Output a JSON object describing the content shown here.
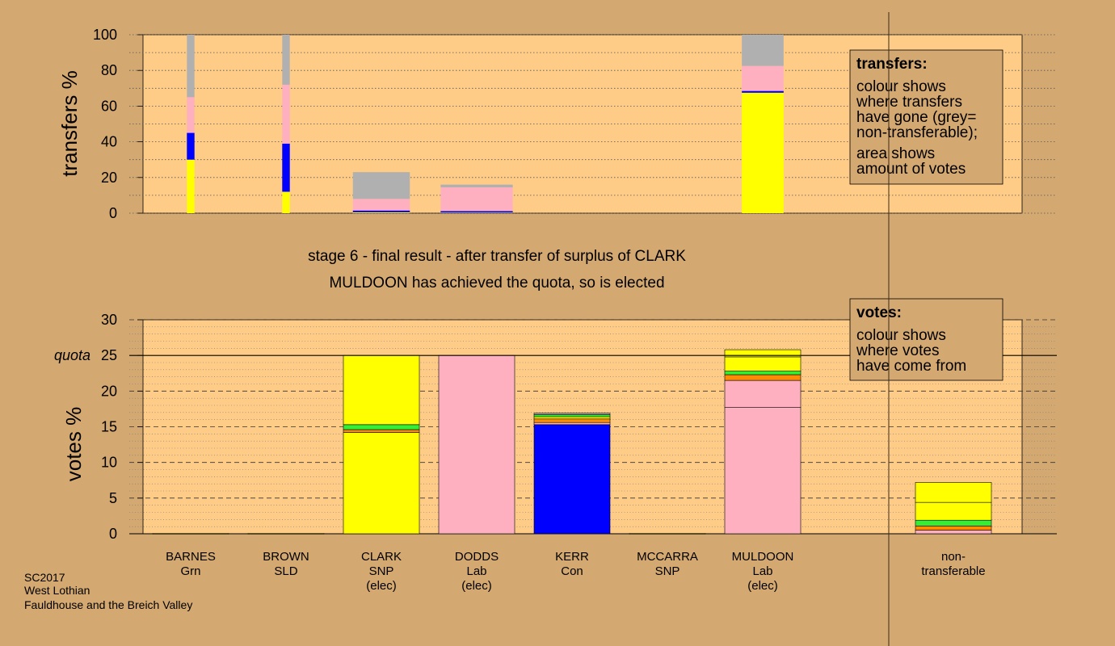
{
  "chart_data": [
    {
      "type": "bar",
      "stacked": true,
      "ylabel": "transfers %",
      "ylim": [
        0,
        100
      ],
      "yticks": [
        "0",
        "20",
        "40",
        "60",
        "80",
        "100"
      ],
      "grid": "dotted horizontal",
      "legend": {
        "title": "transfers:",
        "lines": [
          "colour shows",
          "where transfers",
          "have gone (grey=",
          "non-transferable);"
        ],
        "lines2": [
          "area shows",
          "amount of votes"
        ],
        "placement": "top-right"
      },
      "bars": [
        {
          "candidate": "BARNES",
          "width": 0.1,
          "segments": [
            {
              "color": "#ffff00",
              "value": 30
            },
            {
              "color": "#0000ff",
              "value": 15
            },
            {
              "color": "#ffb0c0",
              "value": 20
            },
            {
              "color": "#b0b0b0",
              "value": 35
            }
          ]
        },
        {
          "candidate": "BROWN",
          "width": 0.1,
          "segments": [
            {
              "color": "#ffff00",
              "value": 12
            },
            {
              "color": "#0000ff",
              "value": 27
            },
            {
              "color": "#ffb0c0",
              "value": 33
            },
            {
              "color": "#b0b0b0",
              "value": 28
            }
          ]
        },
        {
          "candidate": "CLARK",
          "width": 0.75,
          "segments": [
            {
              "color": "#ffff00",
              "value": 0.5
            },
            {
              "color": "#0000ff",
              "value": 1
            },
            {
              "color": "#ffb0c0",
              "value": 6.5
            },
            {
              "color": "#b0b0b0",
              "value": 15
            }
          ]
        },
        {
          "candidate": "DODDS",
          "width": 0.95,
          "segments": [
            {
              "color": "#ffff00",
              "value": 0.3
            },
            {
              "color": "#0000ff",
              "value": 0.9
            },
            {
              "color": "#ffb0c0",
              "value": 13.3
            },
            {
              "color": "#b0b0b0",
              "value": 1.5
            }
          ]
        },
        {
          "candidate": "KERR",
          "width": 0.95,
          "segments": []
        },
        {
          "candidate": "MCCARRA",
          "width": 0.95,
          "segments": []
        },
        {
          "candidate": "MULDOON",
          "width": 0.55,
          "segments": [
            {
              "color": "#ffff00",
              "value": 67.5
            },
            {
              "color": "#0000ff",
              "value": 1
            },
            {
              "color": "#ffb0c0",
              "value": 14
            },
            {
              "color": "#b0b0b0",
              "value": 17.5
            }
          ]
        }
      ]
    },
    {
      "type": "bar",
      "stacked": true,
      "ylabel": "votes %",
      "ylim": [
        0,
        30
      ],
      "yticks": [
        "0",
        "5",
        "10",
        "15",
        "20",
        "25",
        "30"
      ],
      "quota": 25,
      "quota_label": "quota",
      "grid": "dashed horizontal",
      "legend": {
        "title": "votes:",
        "lines": [
          "colour shows",
          "where votes",
          "have come from"
        ],
        "placement": "top-right"
      },
      "categories": [
        {
          "name": "BARNES",
          "party": "Grn",
          "note": ""
        },
        {
          "name": "BROWN",
          "party": "SLD",
          "note": ""
        },
        {
          "name": "CLARK",
          "party": "SNP",
          "note": "(elec)"
        },
        {
          "name": "DODDS",
          "party": "Lab",
          "note": "(elec)"
        },
        {
          "name": "KERR",
          "party": "Con",
          "note": ""
        },
        {
          "name": "MCCARRA",
          "party": "SNP",
          "note": ""
        },
        {
          "name": "MULDOON",
          "party": "Lab",
          "note": "(elec)"
        },
        {
          "name": "",
          "party": "",
          "note": ""
        },
        {
          "name": "non-",
          "party": "transferable",
          "note": ""
        }
      ],
      "bars": [
        {
          "index": 0,
          "segments": [
            {
              "color": "#ffff00",
              "value": 0.05
            }
          ]
        },
        {
          "index": 1,
          "segments": [
            {
              "color": "#ffff00",
              "value": 0.05
            }
          ]
        },
        {
          "index": 2,
          "segments": [
            {
              "color": "#ffff00",
              "value": 14.2
            },
            {
              "color": "#ff8c00",
              "value": 0.4
            },
            {
              "color": "#33ee33",
              "value": 0.7
            },
            {
              "color": "#ffff00",
              "value": 9.7
            }
          ]
        },
        {
          "index": 3,
          "segments": [
            {
              "color": "#ffb0c0",
              "value": 25
            }
          ]
        },
        {
          "index": 4,
          "segments": [
            {
              "color": "#0000ff",
              "value": 15.3
            },
            {
              "color": "#ffb0c0",
              "value": 0.3
            },
            {
              "color": "#ff8c00",
              "value": 0.5
            },
            {
              "color": "#ffff00",
              "value": 0.3
            },
            {
              "color": "#33ee33",
              "value": 0.3
            },
            {
              "color": "#b0b0b0",
              "value": 0.2
            }
          ]
        },
        {
          "index": 5,
          "segments": [
            {
              "color": "#ffff00",
              "value": 0.05
            }
          ]
        },
        {
          "index": 6,
          "segments": [
            {
              "color": "#ffb0c0",
              "value": 17.7
            },
            {
              "color": "#ffb0c0",
              "value": 3.8
            },
            {
              "color": "#ff8c00",
              "value": 0.8
            },
            {
              "color": "#33ee33",
              "value": 0.5
            },
            {
              "color": "#ffff00",
              "value": 2
            },
            {
              "color": "#ffff00",
              "value": 1
            }
          ]
        },
        {
          "index": 8,
          "segments": [
            {
              "color": "#ffb0c0",
              "value": 0.5
            },
            {
              "color": "#ff8c00",
              "value": 0.6
            },
            {
              "color": "#33ee33",
              "value": 0.8
            },
            {
              "color": "#ffff00",
              "value": 2.5
            },
            {
              "color": "#ffff00",
              "value": 2.8
            }
          ]
        }
      ]
    }
  ],
  "heading": {
    "line1": "stage 6 - final result - after transfer of surplus of CLARK",
    "line2": "MULDOON has achieved the quota, so is elected"
  },
  "footer": [
    "SC2017",
    "West Lothian",
    "Fauldhouse and the Breich Valley"
  ],
  "colors": {
    "background": "#d4a871",
    "plot": "#ffcc88",
    "legend_box": "#d4a871"
  }
}
